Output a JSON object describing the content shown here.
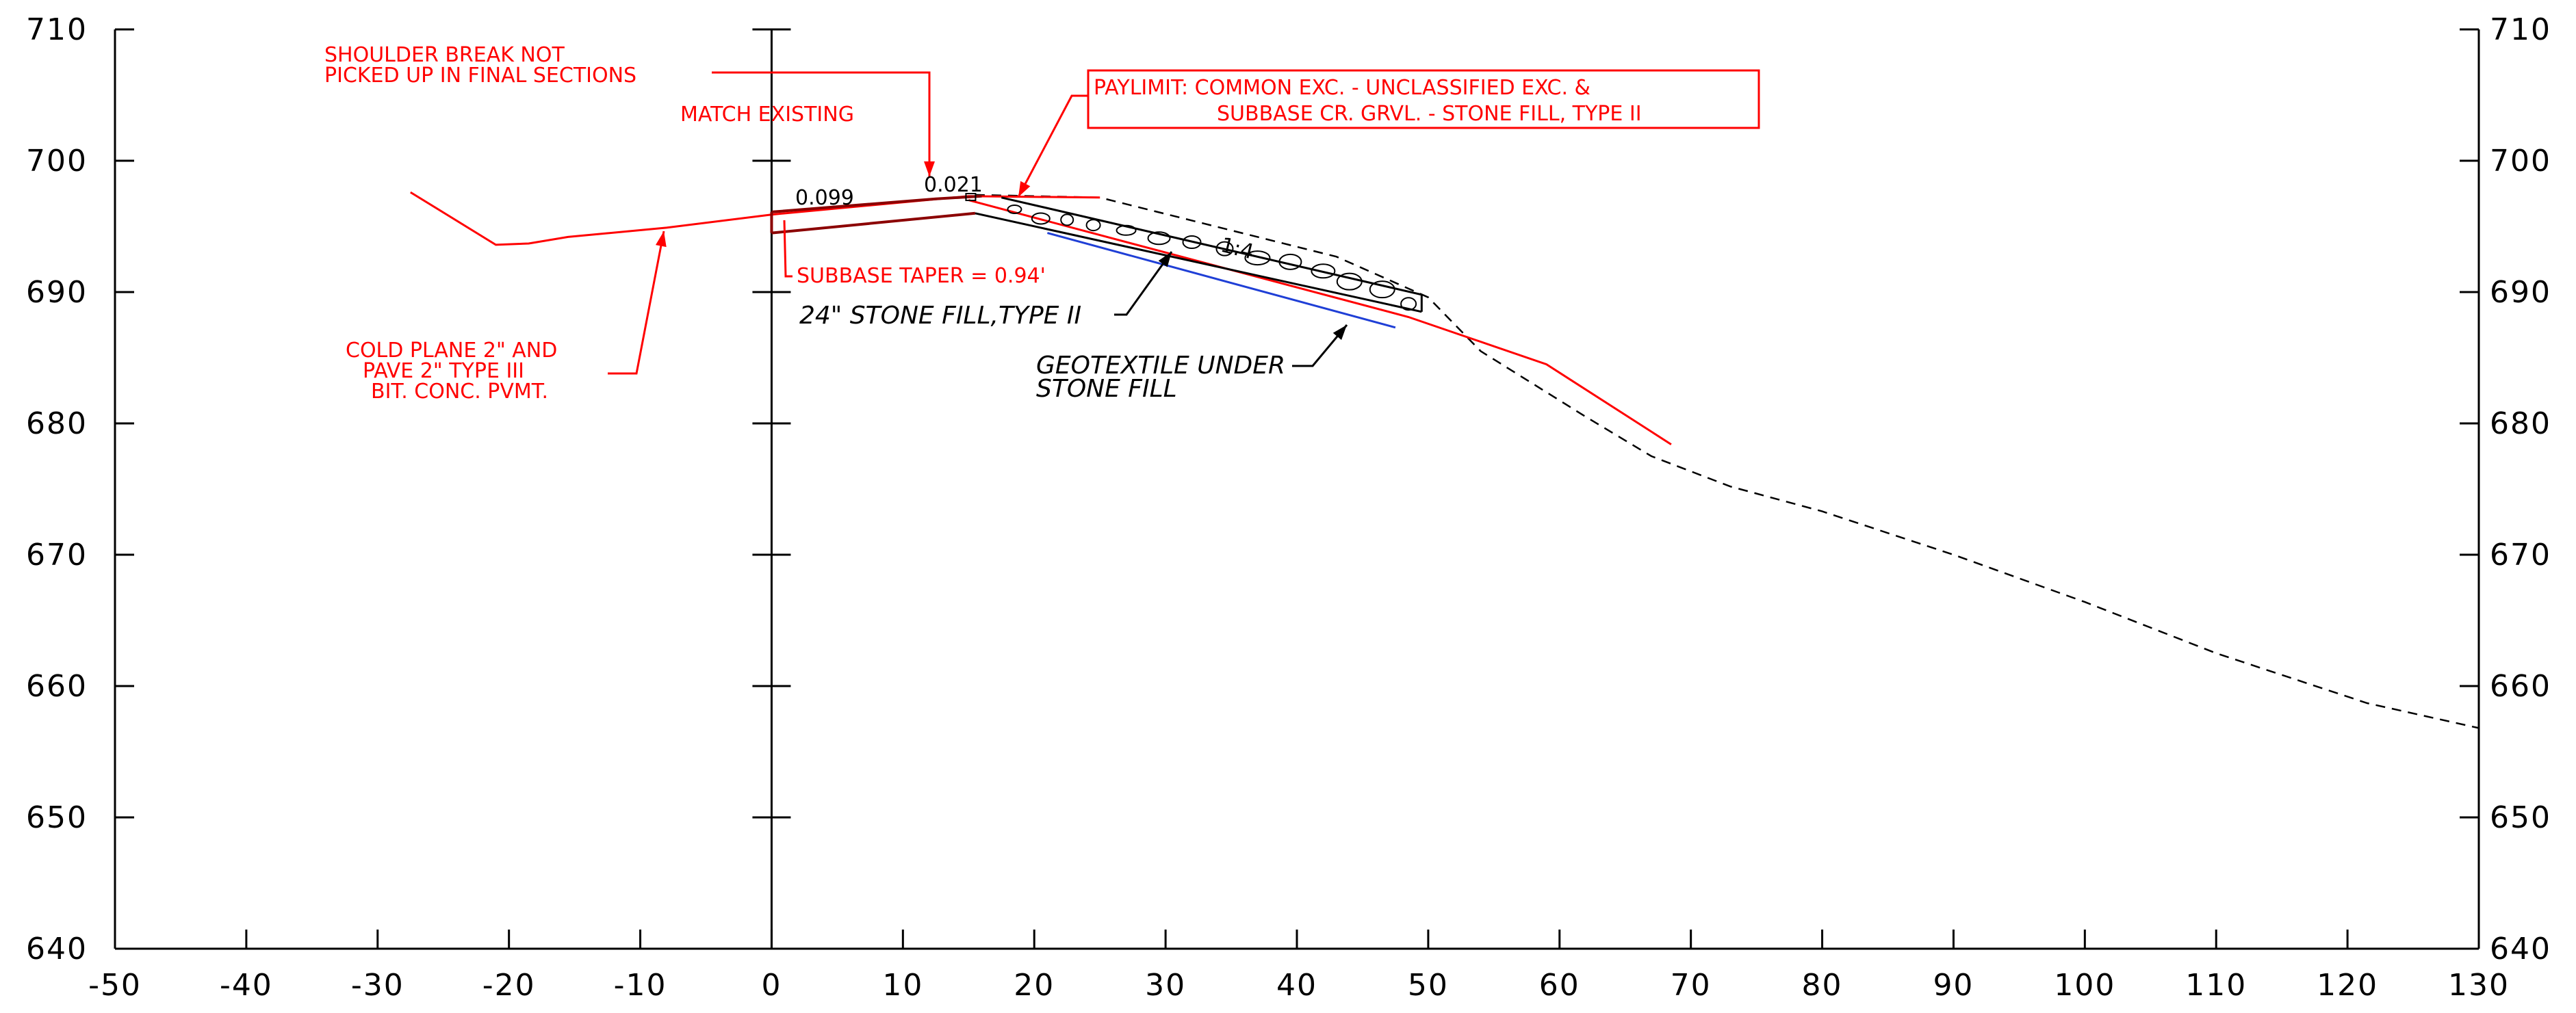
{
  "colors": {
    "annotation": "#ff0000",
    "proposed_surface": "#8b0000",
    "geotextile": "#1f3fd6",
    "existing_ground": "#000000",
    "axes": "#000000"
  },
  "chart_data": {
    "type": "line",
    "xlim": [
      -50,
      130
    ],
    "ylim": [
      640,
      710
    ],
    "x_ticks": [
      "-50",
      "-40",
      "-30",
      "-20",
      "-10",
      "0",
      "10",
      "20",
      "30",
      "40",
      "50",
      "60",
      "70",
      "80",
      "90",
      "100",
      "110",
      "120",
      "130"
    ],
    "y_ticks_left": [
      "710",
      "700",
      "690",
      "680",
      "670",
      "660",
      "650",
      "640"
    ],
    "y_ticks_right": [
      "710",
      "700",
      "690",
      "680",
      "670",
      "660",
      "650",
      "640"
    ],
    "grid": false,
    "series": [
      {
        "key": "existing_ground",
        "style": "dashed",
        "points": [
          [
            15.5,
            697.4
          ],
          [
            25,
            697.2
          ],
          [
            43,
            692.7
          ],
          [
            50,
            689.6
          ],
          [
            54,
            685.5
          ],
          [
            58,
            683
          ],
          [
            62,
            680.5
          ],
          [
            67,
            677.5
          ],
          [
            73,
            675.2
          ],
          [
            80,
            673.3
          ],
          [
            90,
            670
          ],
          [
            100,
            666.4
          ],
          [
            110,
            662.5
          ],
          [
            121.5,
            658.7
          ],
          [
            130,
            656.8
          ]
        ]
      },
      {
        "key": "cold_plane_existing_red",
        "style": "solid",
        "points": [
          [
            -27.5,
            697.6
          ],
          [
            -21,
            693.6
          ],
          [
            -18.5,
            693.7
          ],
          [
            -15.5,
            694.2
          ],
          [
            -8,
            694.9
          ],
          [
            0,
            695.9
          ],
          [
            15,
            697.3
          ],
          [
            25,
            697.2
          ]
        ]
      },
      {
        "key": "slope_red",
        "style": "solid",
        "points": [
          [
            15,
            697.0
          ],
          [
            48.5,
            688.1
          ],
          [
            59,
            684.5
          ],
          [
            68.5,
            678.4
          ]
        ]
      },
      {
        "key": "proposed_top_dark",
        "style": "solid",
        "points": [
          [
            0,
            696.1
          ],
          [
            12.5,
            697.1
          ],
          [
            16,
            697.3
          ]
        ]
      },
      {
        "key": "proposed_subbase_dark",
        "style": "solid",
        "points": [
          [
            0,
            694.5
          ],
          [
            15.5,
            696.0
          ]
        ]
      },
      {
        "key": "stone_fill_top",
        "style": "solid",
        "points": [
          [
            17.5,
            697.2
          ],
          [
            49.5,
            689.8
          ]
        ]
      },
      {
        "key": "stone_fill_bottom",
        "style": "solid",
        "points": [
          [
            15.5,
            696.0
          ],
          [
            49.5,
            688.5
          ]
        ]
      },
      {
        "key": "geotextile_line",
        "style": "solid",
        "points": [
          [
            21,
            694.5
          ],
          [
            47.5,
            687.3
          ]
        ]
      }
    ],
    "slope_labels": [
      "0.099",
      "0.021"
    ],
    "slope_ratio": "1:4"
  },
  "annotations": {
    "shoulder_break": [
      "SHOULDER BREAK NOT",
      "PICKED UP IN FINAL SECTIONS"
    ],
    "match_existing": "MATCH EXISTING",
    "paylimit": [
      "PAYLIMIT: COMMON EXC. - UNCLASSIFIED EXC. &",
      "SUBBASE CR. GRVL. - STONE FILL, TYPE II"
    ],
    "subbase_taper": "SUBBASE TAPER = 0.94'",
    "stone_fill": "24\" STONE FILL,TYPE II",
    "geotextile": [
      "GEOTEXTILE UNDER",
      "STONE FILL"
    ],
    "cold_plane": [
      "COLD PLANE 2\" AND",
      "PAVE 2\" TYPE III",
      "BIT. CONC. PVMT."
    ]
  }
}
